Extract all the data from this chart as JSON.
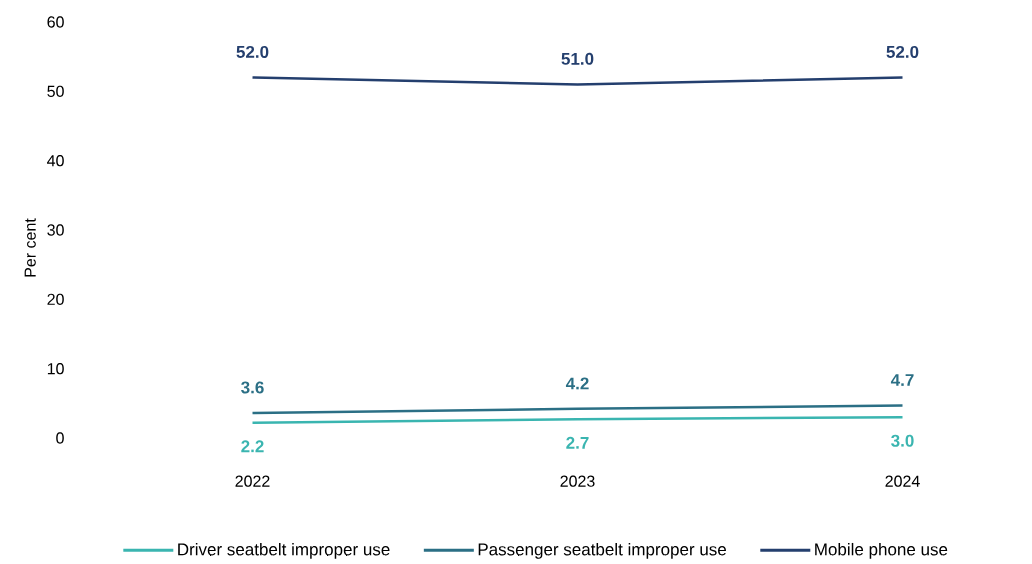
{
  "chart_data": {
    "type": "line",
    "ylabel": "Per cent",
    "categories": [
      "2022",
      "2023",
      "2024"
    ],
    "series": [
      {
        "name": "Driver seatbelt improper use",
        "color": "#3ab5b0",
        "values": [
          2.2,
          2.7,
          3.0
        ],
        "value_labels": [
          "2.2",
          "2.7",
          "3.0"
        ]
      },
      {
        "name": "Passenger seatbelt improper use",
        "color": "#2b6f85",
        "values": [
          3.6,
          4.2,
          4.7
        ],
        "value_labels": [
          "3.6",
          "4.2",
          "4.7"
        ]
      },
      {
        "name": "Mobile phone use",
        "color": "#243f6e",
        "values": [
          52.0,
          51.0,
          52.0
        ],
        "value_labels": [
          "52.0",
          "51.0",
          "52.0"
        ]
      }
    ],
    "ylim": [
      0,
      60
    ],
    "yticks": [
      0,
      10,
      20,
      30,
      40,
      50,
      60
    ],
    "grid": false,
    "legend": "bottom",
    "marker": "none",
    "line_style": "solid"
  }
}
